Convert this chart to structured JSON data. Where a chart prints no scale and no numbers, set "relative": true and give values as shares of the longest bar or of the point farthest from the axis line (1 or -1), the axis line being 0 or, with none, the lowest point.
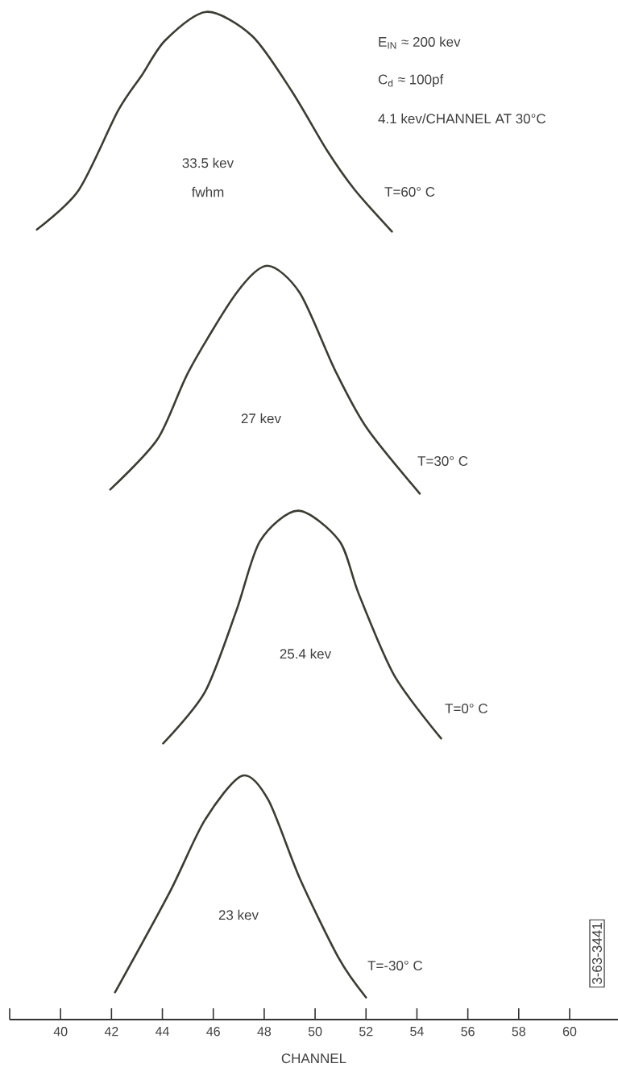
{
  "chart_data": {
    "type": "line",
    "relative": true,
    "xlim": [
      38,
      61.9
    ],
    "xlabel": "CHANNEL",
    "xticks": [
      {
        "value": 38,
        "label": null
      },
      40,
      42,
      44,
      46,
      48,
      50,
      52,
      54,
      56,
      58,
      60
    ],
    "annotations": [
      "E$_{IN}$ ≈ 200 kev",
      "C$_{d}$ ≈ 100pf",
      "4.1 kev/CHANNEL AT 30°C",
      "33.5 kev",
      "fwhm",
      "27 kev",
      "25.4 kev",
      "23 kev",
      "3-63-3441"
    ],
    "series": [
      {
        "name": "T=60° C",
        "color": "#3c3c32",
        "x": [
          39.07,
          40.71,
          42.26,
          43.19,
          44.12,
          45.74,
          47.53,
          49.09,
          50.48,
          51.57,
          53.02
        ],
        "values": [
          0.784,
          0.823,
          0.902,
          0.937,
          0.972,
          1.0,
          0.976,
          0.921,
          0.862,
          0.823,
          0.782
        ]
      },
      {
        "name": "T=30° C",
        "color": "#3c3c32",
        "x": [
          41.95,
          43.81,
          45.05,
          46.91,
          48.12,
          49.4,
          50.79,
          52.03,
          54.11
        ],
        "values": [
          0.526,
          0.576,
          0.644,
          0.721,
          0.748,
          0.721,
          0.644,
          0.587,
          0.522
        ]
      },
      {
        "name": "T=0° C",
        "color": "#3c3c32",
        "x": [
          44.03,
          45.67,
          46.91,
          47.84,
          49.33,
          50.95,
          51.72,
          53.12,
          54.95
        ],
        "values": [
          0.274,
          0.325,
          0.406,
          0.475,
          0.505,
          0.475,
          0.422,
          0.341,
          0.279
        ]
      },
      {
        "name": "T=-30° C",
        "color": "#3c3c32",
        "x": [
          42.14,
          44.28,
          45.67,
          47.13,
          48.16,
          49.4,
          50.95,
          52.0
        ],
        "values": [
          0.027,
          0.126,
          0.198,
          0.242,
          0.218,
          0.14,
          0.06,
          0.022
        ]
      }
    ]
  }
}
